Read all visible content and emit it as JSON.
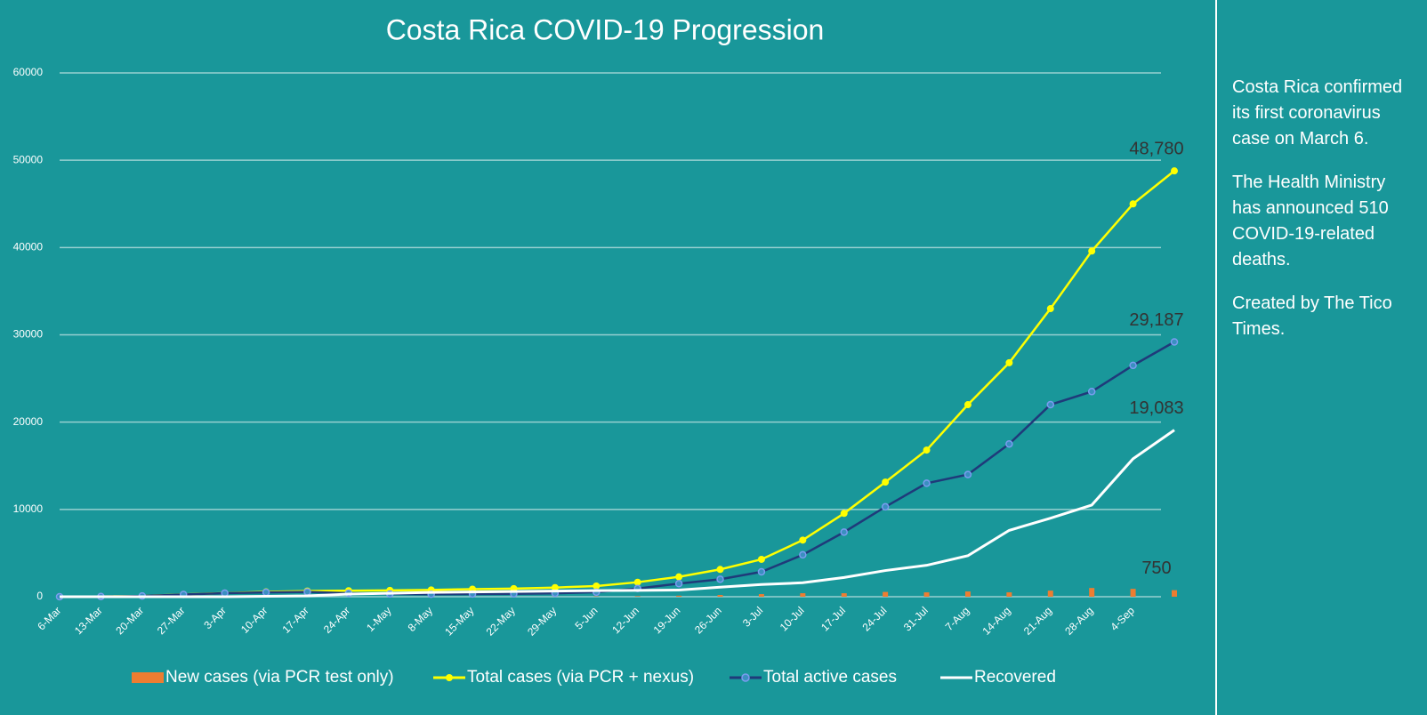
{
  "chart_data": {
    "type": "line",
    "title": "Costa Rica COVID-19 Progression",
    "categories": [
      "6-Mar",
      "13-Mar",
      "20-Mar",
      "27-Mar",
      "3-Apr",
      "10-Apr",
      "17-Apr",
      "24-Apr",
      "1-May",
      "8-May",
      "15-May",
      "22-May",
      "29-May",
      "5-Jun",
      "12-Jun",
      "19-Jun",
      "26-Jun",
      "3-Jul",
      "10-Jul",
      "17-Jul",
      "24-Jul",
      "31-Jul",
      "7-Aug",
      "14-Aug",
      "21-Aug",
      "28-Aug",
      "4-Sep",
      null
    ],
    "series": [
      {
        "name": "New cases (via PCR test only)",
        "type": "bar",
        "color": "#ed7d31",
        "values": [
          1,
          5,
          20,
          30,
          20,
          15,
          10,
          5,
          10,
          10,
          10,
          20,
          20,
          40,
          60,
          120,
          200,
          300,
          400,
          400,
          550,
          500,
          600,
          500,
          700,
          1000,
          900,
          750
        ]
      },
      {
        "name": "Total cases (via PCR + nexus)",
        "type": "line",
        "color": "#ffff00",
        "values": [
          1,
          27,
          87,
          263,
          416,
          558,
          655,
          693,
          725,
          780,
          866,
          930,
          1047,
          1228,
          1661,
          2277,
          3130,
          4281,
          6485,
          9546,
          13129,
          16800,
          22000,
          26800,
          33000,
          39600,
          45000,
          48780
        ],
        "value_labels": [
          null,
          null,
          null,
          null,
          null,
          null,
          null,
          null,
          null,
          null,
          null,
          null,
          null,
          null,
          null,
          null,
          null,
          null,
          null,
          null,
          null,
          null,
          null,
          null,
          null,
          null,
          null,
          "48,780"
        ]
      },
      {
        "name": "Total active cases",
        "type": "line",
        "color": "#1f3a7a",
        "values": [
          1,
          27,
          85,
          259,
          410,
          500,
          550,
          400,
          320,
          280,
          310,
          330,
          390,
          520,
          940,
          1500,
          2000,
          2850,
          4800,
          7400,
          10300,
          13000,
          14000,
          17500,
          22000,
          23500,
          26500,
          29187
        ],
        "value_labels": [
          null,
          null,
          null,
          null,
          null,
          null,
          null,
          null,
          null,
          null,
          null,
          null,
          null,
          null,
          null,
          null,
          null,
          null,
          null,
          null,
          null,
          null,
          null,
          null,
          null,
          null,
          null,
          "29,187"
        ]
      },
      {
        "name": "Recovered",
        "type": "line",
        "color": "#ffffff",
        "values": [
          0,
          0,
          0,
          2,
          4,
          50,
          100,
          300,
          400,
          500,
          550,
          600,
          650,
          700,
          720,
          760,
          1100,
          1400,
          1600,
          2200,
          3000,
          3600,
          4700,
          7600,
          9000,
          10500,
          15800,
          19083
        ],
        "value_labels": [
          null,
          null,
          null,
          null,
          null,
          null,
          null,
          null,
          null,
          null,
          null,
          null,
          null,
          null,
          null,
          null,
          null,
          null,
          null,
          null,
          null,
          null,
          null,
          null,
          null,
          null,
          null,
          "19,083"
        ]
      }
    ],
    "ylim": [
      0,
      60000
    ],
    "yticks": [
      0,
      10000,
      20000,
      30000,
      40000,
      50000,
      60000
    ],
    "grid": true
  },
  "side_notes": [
    "Costa Rica confirmed its first coronavirus case on March 6.",
    "The Health Ministry has announced 510 COVID-19-related deaths.",
    "Created by The Tico Times."
  ]
}
